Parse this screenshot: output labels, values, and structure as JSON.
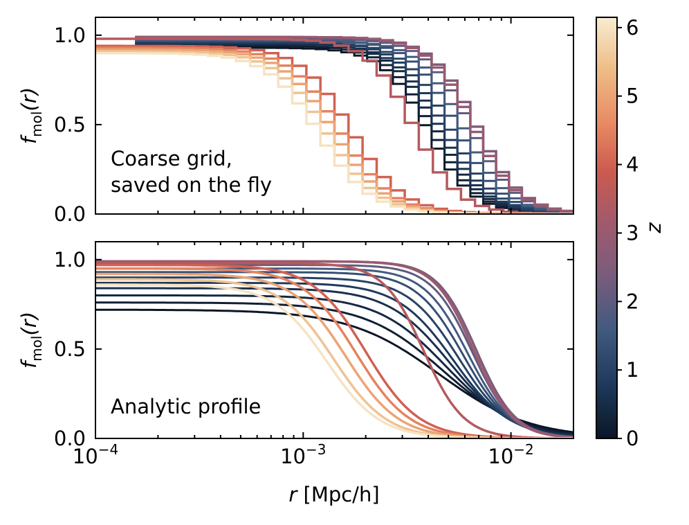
{
  "chart_data": [
    {
      "type": "line",
      "panel": "top",
      "style": "step",
      "annotation": [
        "Coarse grid,",
        "saved on the fly"
      ],
      "xlabel_var": "r",
      "xlabel_unit": " [Mpc/h]",
      "x_scale": "log",
      "xlim": [
        0.0001,
        0.02
      ],
      "ylim": [
        0.0,
        1.1
      ],
      "x_ticks": [
        {
          "base": "10",
          "exp": "−4"
        },
        {
          "base": "10",
          "exp": "−3"
        },
        {
          "base": "10",
          "exp": "−2"
        }
      ],
      "y_ticks": [
        "0.0",
        "0.5",
        "1.0"
      ],
      "y_tick_values": [
        0.0,
        0.5,
        1.0
      ],
      "ylabel_f": "f",
      "ylabel_sub": "mol",
      "ylabel_paren": "(r)",
      "series_model": "f = fmax / (1 + (r/r_half)^n), one curve per snapshot z",
      "series": [
        {
          "z": 0.0,
          "fmax": 0.93,
          "r_half": 0.004,
          "n": 4.0
        },
        {
          "z": 0.2,
          "fmax": 0.94,
          "r_half": 0.0042,
          "n": 4.0
        },
        {
          "z": 0.4,
          "fmax": 0.95,
          "r_half": 0.0044,
          "n": 4.0
        },
        {
          "z": 0.6,
          "fmax": 0.95,
          "r_half": 0.0046,
          "n": 4.0
        },
        {
          "z": 0.8,
          "fmax": 0.96,
          "r_half": 0.0048,
          "n": 4.0
        },
        {
          "z": 1.0,
          "fmax": 0.96,
          "r_half": 0.0051,
          "n": 4.0
        },
        {
          "z": 1.3,
          "fmax": 0.97,
          "r_half": 0.0055,
          "n": 4.0
        },
        {
          "z": 1.6,
          "fmax": 0.97,
          "r_half": 0.0059,
          "n": 4.0
        },
        {
          "z": 2.0,
          "fmax": 0.98,
          "r_half": 0.0064,
          "n": 4.0
        },
        {
          "z": 2.5,
          "fmax": 0.99,
          "r_half": 0.0068,
          "n": 4.0
        },
        {
          "z": 3.0,
          "fmax": 0.99,
          "r_half": 0.0066,
          "n": 4.0
        },
        {
          "z": 3.5,
          "fmax": 0.98,
          "r_half": 0.0034,
          "n": 4.0
        },
        {
          "z": 4.0,
          "fmax": 0.94,
          "r_half": 0.0017,
          "n": 3.5
        },
        {
          "z": 4.5,
          "fmax": 0.93,
          "r_half": 0.0015,
          "n": 3.5
        },
        {
          "z": 5.0,
          "fmax": 0.92,
          "r_half": 0.0014,
          "n": 3.5
        },
        {
          "z": 5.5,
          "fmax": 0.91,
          "r_half": 0.0013,
          "n": 3.5
        },
        {
          "z": 6.0,
          "fmax": 0.9,
          "r_half": 0.0012,
          "n": 3.5
        }
      ]
    },
    {
      "type": "line",
      "panel": "bottom",
      "style": "smooth",
      "annotation": [
        "Analytic profile"
      ],
      "xlabel_var": "r",
      "xlabel_unit": " [Mpc/h]",
      "x_scale": "log",
      "xlim": [
        0.0001,
        0.02
      ],
      "ylim": [
        0.0,
        1.1
      ],
      "x_ticks": [
        {
          "base": "10",
          "exp": "−4"
        },
        {
          "base": "10",
          "exp": "−3"
        },
        {
          "base": "10",
          "exp": "−2"
        }
      ],
      "y_ticks": [
        "0.0",
        "0.5",
        "1.0"
      ],
      "y_tick_values": [
        0.0,
        0.5,
        1.0
      ],
      "ylabel_f": "f",
      "ylabel_sub": "mol",
      "ylabel_paren": "(r)",
      "series_model": "f = fmax / (1 + (r/r_half)^n), one curve per snapshot z",
      "series": [
        {
          "z": 0.0,
          "fmax": 0.72,
          "r_half": 0.0045,
          "n": 2.0
        },
        {
          "z": 0.2,
          "fmax": 0.76,
          "r_half": 0.0047,
          "n": 2.3
        },
        {
          "z": 0.4,
          "fmax": 0.8,
          "r_half": 0.0049,
          "n": 2.6
        },
        {
          "z": 0.6,
          "fmax": 0.84,
          "r_half": 0.0051,
          "n": 2.9
        },
        {
          "z": 0.8,
          "fmax": 0.87,
          "r_half": 0.0053,
          "n": 3.2
        },
        {
          "z": 1.0,
          "fmax": 0.9,
          "r_half": 0.0056,
          "n": 3.5
        },
        {
          "z": 1.3,
          "fmax": 0.93,
          "r_half": 0.0059,
          "n": 3.8
        },
        {
          "z": 1.6,
          "fmax": 0.95,
          "r_half": 0.0062,
          "n": 4.1
        },
        {
          "z": 2.0,
          "fmax": 0.97,
          "r_half": 0.0065,
          "n": 4.4
        },
        {
          "z": 2.5,
          "fmax": 0.99,
          "r_half": 0.0068,
          "n": 4.6
        },
        {
          "z": 3.0,
          "fmax": 0.99,
          "r_half": 0.0066,
          "n": 4.6
        },
        {
          "z": 3.5,
          "fmax": 0.98,
          "r_half": 0.0038,
          "n": 4.5
        },
        {
          "z": 4.0,
          "fmax": 0.97,
          "r_half": 0.002,
          "n": 3.4
        },
        {
          "z": 4.5,
          "fmax": 0.95,
          "r_half": 0.0018,
          "n": 3.4
        },
        {
          "z": 5.0,
          "fmax": 0.92,
          "r_half": 0.0016,
          "n": 3.4
        },
        {
          "z": 5.5,
          "fmax": 0.89,
          "r_half": 0.0014,
          "n": 3.4
        },
        {
          "z": 6.0,
          "fmax": 0.86,
          "r_half": 0.0013,
          "n": 3.4
        }
      ]
    }
  ],
  "colorbar": {
    "label": "z",
    "range": [
      0,
      6.15
    ],
    "tick_values": [
      0,
      1,
      2,
      3,
      4,
      5,
      6
    ],
    "tick_labels": [
      "0",
      "1",
      "2",
      "3",
      "4",
      "5",
      "6"
    ],
    "stops": [
      {
        "z": 0.0,
        "color": "#0b1627"
      },
      {
        "z": 0.8,
        "color": "#1e3a5c"
      },
      {
        "z": 1.6,
        "color": "#425a80"
      },
      {
        "z": 2.4,
        "color": "#7a5c7c"
      },
      {
        "z": 3.1,
        "color": "#9e5a6e"
      },
      {
        "z": 3.9,
        "color": "#cc5a4f"
      },
      {
        "z": 4.6,
        "color": "#e88a62"
      },
      {
        "z": 5.4,
        "color": "#eebd88"
      },
      {
        "z": 6.15,
        "color": "#f8ecd2"
      }
    ]
  }
}
